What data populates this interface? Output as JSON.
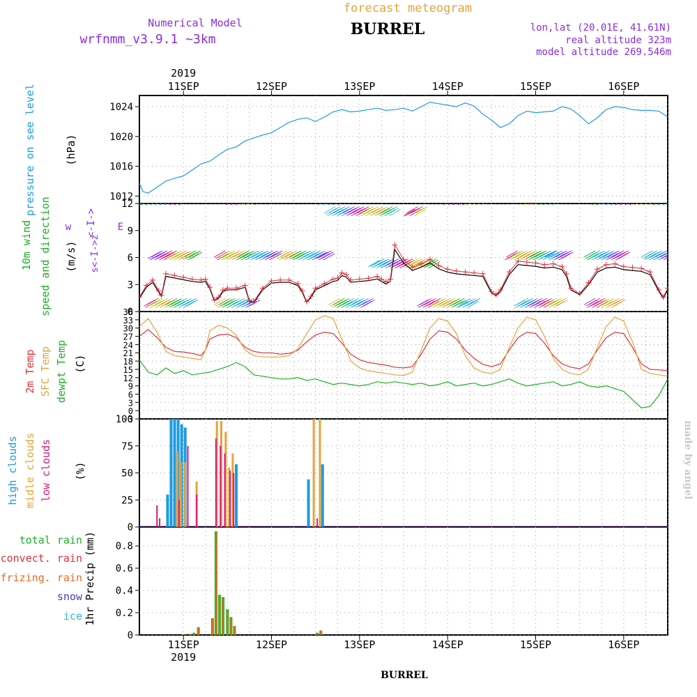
{
  "header": {
    "forecast_label": "forecast meteogram",
    "station": "BURREL",
    "model_label": "Numerical Model",
    "model_name": "wrfnmm_v3.9.1",
    "model_res": "~3km",
    "lonlat": "lon,lat (20.01E, 41.61N)",
    "real_alt": "real altitude 323m",
    "model_alt": "model altitude  269.546m",
    "credit": "made by angel",
    "footer_station": "BURREL"
  },
  "colors": {
    "purple": "#8a2be2",
    "orange": "#e6a23c",
    "pressure": "#1e9be0",
    "wind_label": "#1bb024",
    "temp2m": "#e0303c",
    "sfc": "#e6a23c",
    "dewpt": "#1bb024",
    "high": "#1e9be0",
    "mid": "#e6a23c",
    "low": "#d6197a",
    "total_rain": "#1bb024",
    "convect_rain": "#e0303c",
    "frizing_rain": "#e86a22",
    "snow": "#4b3fb0",
    "ice": "#2fb5d6"
  },
  "chart_data": [
    {
      "type": "line",
      "panel": "pressure",
      "x_ticks_top": [
        "11SEP",
        "12SEP",
        "13SEP",
        "14SEP",
        "15SEP",
        "16SEP"
      ],
      "year_top": "2019",
      "ylabel": [
        "pressure on see level",
        "(hPa)"
      ],
      "yticks": [
        "1012",
        "1016",
        "1020",
        "1024"
      ],
      "ylim": [
        1011,
        1025.5
      ],
      "x_days": [
        10.5,
        16.5
      ],
      "series": [
        {
          "x": [
            10.5,
            10.54,
            10.6,
            10.7,
            10.8,
            10.9,
            11.0,
            11.1,
            11.2,
            11.3,
            11.4,
            11.5,
            11.6,
            11.7,
            11.8,
            11.9,
            12.0,
            12.1,
            12.2,
            12.3,
            12.4,
            12.5,
            12.6,
            12.7,
            12.8,
            12.9,
            13.0,
            13.1,
            13.2,
            13.3,
            13.4,
            13.5,
            13.6,
            13.7,
            13.8,
            13.9,
            14.0,
            14.1,
            14.2,
            14.3,
            14.4,
            14.5,
            14.6,
            14.7,
            14.8,
            14.9,
            15.0,
            15.1,
            15.2,
            15.3,
            15.4,
            15.5,
            15.6,
            15.7,
            15.8,
            15.9,
            16.0,
            16.1,
            16.2,
            16.3,
            16.4,
            16.5
          ],
          "y": [
            1013.7,
            1012.6,
            1012.4,
            1013.2,
            1014.0,
            1014.4,
            1014.7,
            1015.5,
            1016.3,
            1016.7,
            1017.5,
            1018.3,
            1018.6,
            1019.4,
            1019.8,
            1020.2,
            1020.5,
            1021.2,
            1021.9,
            1022.3,
            1022.5,
            1022.0,
            1022.6,
            1023.3,
            1023.6,
            1023.3,
            1023.4,
            1023.6,
            1023.8,
            1023.5,
            1023.6,
            1023.8,
            1023.4,
            1024.0,
            1024.6,
            1024.4,
            1024.2,
            1024.0,
            1024.5,
            1024.1,
            1023.0,
            1022.2,
            1021.2,
            1021.7,
            1022.8,
            1023.4,
            1023.2,
            1023.3,
            1023.4,
            1024.0,
            1023.7,
            1022.8,
            1021.7,
            1022.5,
            1023.6,
            1024.0,
            1023.9,
            1023.6,
            1023.5,
            1023.5,
            1023.4,
            1022.6
          ]
        }
      ]
    },
    {
      "type": "line",
      "panel": "wind",
      "ylabel": [
        "10m wind",
        "speed and direction",
        "(m/s)"
      ],
      "compass": {
        "w": "w",
        "e": "E",
        "s": "s",
        "z": "z"
      },
      "yticks": [
        "0",
        "3",
        "6",
        "9",
        "12"
      ],
      "ylim": [
        0,
        12
      ],
      "series": [
        {
          "name": "speed",
          "x": [
            10.5,
            10.58,
            10.65,
            10.72,
            10.75,
            10.8,
            10.9,
            11.0,
            11.1,
            11.2,
            11.25,
            11.3,
            11.35,
            11.4,
            11.45,
            11.5,
            11.6,
            11.7,
            11.75,
            11.8,
            11.9,
            12.0,
            12.1,
            12.2,
            12.3,
            12.35,
            12.4,
            12.45,
            12.5,
            12.6,
            12.7,
            12.75,
            12.8,
            12.85,
            12.9,
            13.0,
            13.1,
            13.2,
            13.25,
            13.3,
            13.35,
            13.4,
            13.5,
            13.6,
            13.7,
            13.8,
            13.9,
            14.0,
            14.1,
            14.2,
            14.3,
            14.4,
            14.5,
            14.55,
            14.6,
            14.7,
            14.8,
            14.9,
            15.0,
            15.1,
            15.2,
            15.3,
            15.35,
            15.4,
            15.5,
            15.6,
            15.7,
            15.8,
            15.9,
            16.0,
            16.1,
            16.2,
            16.3,
            16.4,
            16.45,
            16.5
          ],
          "y": [
            1.6,
            2.9,
            3.5,
            2.3,
            1.8,
            4.2,
            4.0,
            3.8,
            3.6,
            3.5,
            3.6,
            2.7,
            1.3,
            1.6,
            2.4,
            2.6,
            2.6,
            2.9,
            1.2,
            1.1,
            2.6,
            3.4,
            3.5,
            3.5,
            3.1,
            2.3,
            1.1,
            1.7,
            2.6,
            3.1,
            3.6,
            3.7,
            4.3,
            4.1,
            3.5,
            3.6,
            3.7,
            3.9,
            3.6,
            3.3,
            3.6,
            7.4,
            5.8,
            4.9,
            5.3,
            5.8,
            5.1,
            4.7,
            4.5,
            4.4,
            4.3,
            4.2,
            2.2,
            1.9,
            2.4,
            4.4,
            5.6,
            5.5,
            5.4,
            5.2,
            5.3,
            5.0,
            4.2,
            2.6,
            2.0,
            3.2,
            4.7,
            5.2,
            5.3,
            5.0,
            4.9,
            4.8,
            4.4,
            2.4,
            1.6,
            2.6
          ]
        }
      ]
    },
    {
      "type": "line",
      "panel": "temperature",
      "ylabel": [
        "2m Temp",
        "SFC Temp",
        "dewpt Temp",
        "(C)"
      ],
      "yticks": [
        "-3",
        "0",
        "3",
        "6",
        "9",
        "12",
        "15",
        "18",
        "21",
        "24",
        "27",
        "30",
        "33",
        "36"
      ],
      "ylim": [
        -3,
        36
      ],
      "series": [
        {
          "name": "2m Temp",
          "x": [
            10.5,
            10.6,
            10.7,
            10.8,
            10.9,
            11.0,
            11.1,
            11.2,
            11.25,
            11.3,
            11.4,
            11.5,
            11.6,
            11.7,
            11.8,
            11.9,
            12.0,
            12.1,
            12.2,
            12.3,
            12.4,
            12.5,
            12.6,
            12.7,
            12.8,
            12.9,
            13.0,
            13.1,
            13.2,
            13.3,
            13.4,
            13.5,
            13.6,
            13.7,
            13.8,
            13.9,
            14.0,
            14.1,
            14.2,
            14.3,
            14.4,
            14.5,
            14.6,
            14.7,
            14.8,
            14.9,
            15.0,
            15.1,
            15.2,
            15.3,
            15.4,
            15.5,
            15.6,
            15.7,
            15.8,
            15.9,
            16.0,
            16.1,
            16.2,
            16.3,
            16.4,
            16.5
          ],
          "y": [
            27.0,
            29.5,
            26.5,
            23.0,
            21.5,
            21.3,
            20.8,
            20.0,
            22.0,
            26.0,
            27.5,
            27.8,
            26.5,
            23.0,
            21.5,
            21.0,
            21.0,
            20.5,
            20.8,
            22.0,
            25.0,
            27.5,
            28.5,
            28.0,
            24.5,
            20.5,
            18.5,
            17.5,
            17.0,
            16.5,
            15.8,
            15.5,
            16.0,
            20.5,
            26.0,
            29.0,
            28.5,
            26.0,
            22.0,
            19.0,
            16.8,
            16.0,
            17.0,
            22.0,
            26.5,
            28.5,
            28.0,
            24.5,
            20.0,
            17.0,
            15.8,
            15.2,
            17.0,
            22.0,
            26.5,
            28.5,
            28.0,
            23.0,
            17.0,
            15.0,
            14.8,
            14.5
          ]
        },
        {
          "name": "SFC Temp",
          "x": [
            10.5,
            10.6,
            10.7,
            10.8,
            10.9,
            11.0,
            11.1,
            11.2,
            11.25,
            11.3,
            11.4,
            11.5,
            11.6,
            11.7,
            11.8,
            11.9,
            12.0,
            12.1,
            12.2,
            12.3,
            12.4,
            12.5,
            12.6,
            12.7,
            12.8,
            12.9,
            13.0,
            13.1,
            13.2,
            13.3,
            13.4,
            13.5,
            13.6,
            13.7,
            13.8,
            13.9,
            14.0,
            14.1,
            14.2,
            14.3,
            14.4,
            14.5,
            14.6,
            14.7,
            14.8,
            14.9,
            15.0,
            15.1,
            15.2,
            15.3,
            15.4,
            15.5,
            15.6,
            15.7,
            15.8,
            15.9,
            16.0,
            16.1,
            16.2,
            16.3,
            16.4,
            16.5
          ],
          "y": [
            30.5,
            33.5,
            28.5,
            21.5,
            20.0,
            19.5,
            19.0,
            18.5,
            22.0,
            29.0,
            31.0,
            30.0,
            27.5,
            22.0,
            20.0,
            19.5,
            19.5,
            19.5,
            20.0,
            22.5,
            28.0,
            33.0,
            34.5,
            33.5,
            26.0,
            18.0,
            15.5,
            14.5,
            14.0,
            13.5,
            13.0,
            12.8,
            14.0,
            22.0,
            30.0,
            33.5,
            32.5,
            28.0,
            20.0,
            15.5,
            14.0,
            13.5,
            15.0,
            23.0,
            30.0,
            34.0,
            33.0,
            27.0,
            19.0,
            15.0,
            13.5,
            13.0,
            15.0,
            23.0,
            30.5,
            34.0,
            32.5,
            25.0,
            15.0,
            13.5,
            13.0,
            12.5
          ]
        },
        {
          "name": "dewpt Temp",
          "x": [
            10.5,
            10.6,
            10.7,
            10.8,
            10.9,
            11.0,
            11.1,
            11.2,
            11.3,
            11.4,
            11.5,
            11.6,
            11.7,
            11.8,
            11.9,
            12.0,
            12.1,
            12.2,
            12.3,
            12.4,
            12.5,
            12.6,
            12.7,
            12.8,
            12.9,
            13.0,
            13.1,
            13.2,
            13.3,
            13.4,
            13.5,
            13.6,
            13.7,
            13.8,
            13.9,
            14.0,
            14.1,
            14.2,
            14.3,
            14.4,
            14.5,
            14.6,
            14.7,
            14.8,
            14.9,
            15.0,
            15.1,
            15.2,
            15.3,
            15.4,
            15.5,
            15.6,
            15.7,
            15.8,
            15.9,
            16.0,
            16.1,
            16.2,
            16.3,
            16.4,
            16.5
          ],
          "y": [
            18.5,
            14.0,
            13.0,
            15.5,
            13.5,
            14.5,
            13.0,
            13.5,
            14.0,
            15.0,
            16.0,
            17.5,
            16.0,
            13.0,
            12.5,
            12.0,
            11.5,
            11.5,
            12.0,
            11.0,
            11.5,
            10.5,
            9.5,
            10.0,
            9.5,
            9.0,
            9.5,
            10.5,
            10.0,
            10.5,
            10.0,
            9.5,
            10.0,
            9.0,
            9.5,
            10.5,
            9.0,
            9.5,
            10.0,
            9.0,
            9.5,
            10.5,
            11.5,
            10.0,
            9.0,
            9.5,
            10.0,
            10.5,
            9.0,
            9.5,
            10.5,
            9.0,
            8.5,
            9.0,
            8.0,
            7.0,
            4.0,
            1.0,
            1.5,
            5.5,
            11.5
          ]
        }
      ]
    },
    {
      "type": "bar",
      "panel": "clouds",
      "ylabel": [
        "high clouds",
        "midle clouds",
        "low clouds",
        "(%)"
      ],
      "yticks": [
        "0",
        "25",
        "50",
        "75",
        "100"
      ],
      "ylim": [
        0,
        100
      ],
      "series": [
        {
          "name": "high",
          "x": [
            10.82,
            10.86,
            10.9,
            10.94,
            10.98,
            11.02,
            11.6,
            12.42,
            12.58
          ],
          "values": [
            30,
            100,
            100,
            100,
            95,
            92,
            58,
            44,
            58
          ]
        },
        {
          "name": "mid",
          "x": [
            10.93,
            10.97,
            11.02,
            11.15,
            11.38,
            11.43,
            11.48,
            11.52,
            11.56,
            12.48,
            12.55
          ],
          "values": [
            70,
            60,
            60,
            42,
            98,
            98,
            88,
            55,
            68,
            100,
            100
          ]
        },
        {
          "name": "low",
          "x": [
            10.7,
            10.73,
            10.95,
            11.05,
            11.15,
            11.37,
            11.42,
            11.47,
            11.53,
            11.57,
            12.52
          ],
          "values": [
            20,
            8,
            25,
            75,
            30,
            82,
            75,
            68,
            52,
            50,
            8
          ]
        }
      ]
    },
    {
      "type": "bar",
      "panel": "precip",
      "ylabel": [
        "total rain",
        "convect. rain",
        "frizing. rain",
        "snow",
        "ice",
        "1hr Precip (mm)"
      ],
      "yticks": [
        "0",
        "0.2",
        "0.4",
        "0.6",
        "0.8"
      ],
      "ylim": [
        0,
        0.97
      ],
      "x_ticks_bottom": [
        "11SEP",
        "12SEP",
        "13SEP",
        "14SEP",
        "15SEP",
        "16SEP"
      ],
      "year_bottom": "2019",
      "series": [
        {
          "name": "total rain",
          "x": [
            11.0,
            11.08,
            11.12,
            11.17,
            11.33,
            11.37,
            11.41,
            11.45,
            11.5,
            11.54,
            11.58,
            12.52,
            12.56
          ],
          "values": [
            0.005,
            0.01,
            0.02,
            0.07,
            0.15,
            0.93,
            0.36,
            0.34,
            0.23,
            0.16,
            0.08,
            0.02,
            0.04
          ]
        },
        {
          "name": "convect. rain",
          "x": [
            11.0,
            11.08,
            11.12,
            11.17,
            11.33,
            11.37,
            11.41,
            11.45,
            11.5,
            11.54,
            11.58,
            12.52,
            12.56
          ],
          "values": [
            0.005,
            0.01,
            0.02,
            0.07,
            0.15,
            0.92,
            0.35,
            0.33,
            0.22,
            0.15,
            0.08,
            0.02,
            0.04
          ]
        }
      ]
    }
  ]
}
